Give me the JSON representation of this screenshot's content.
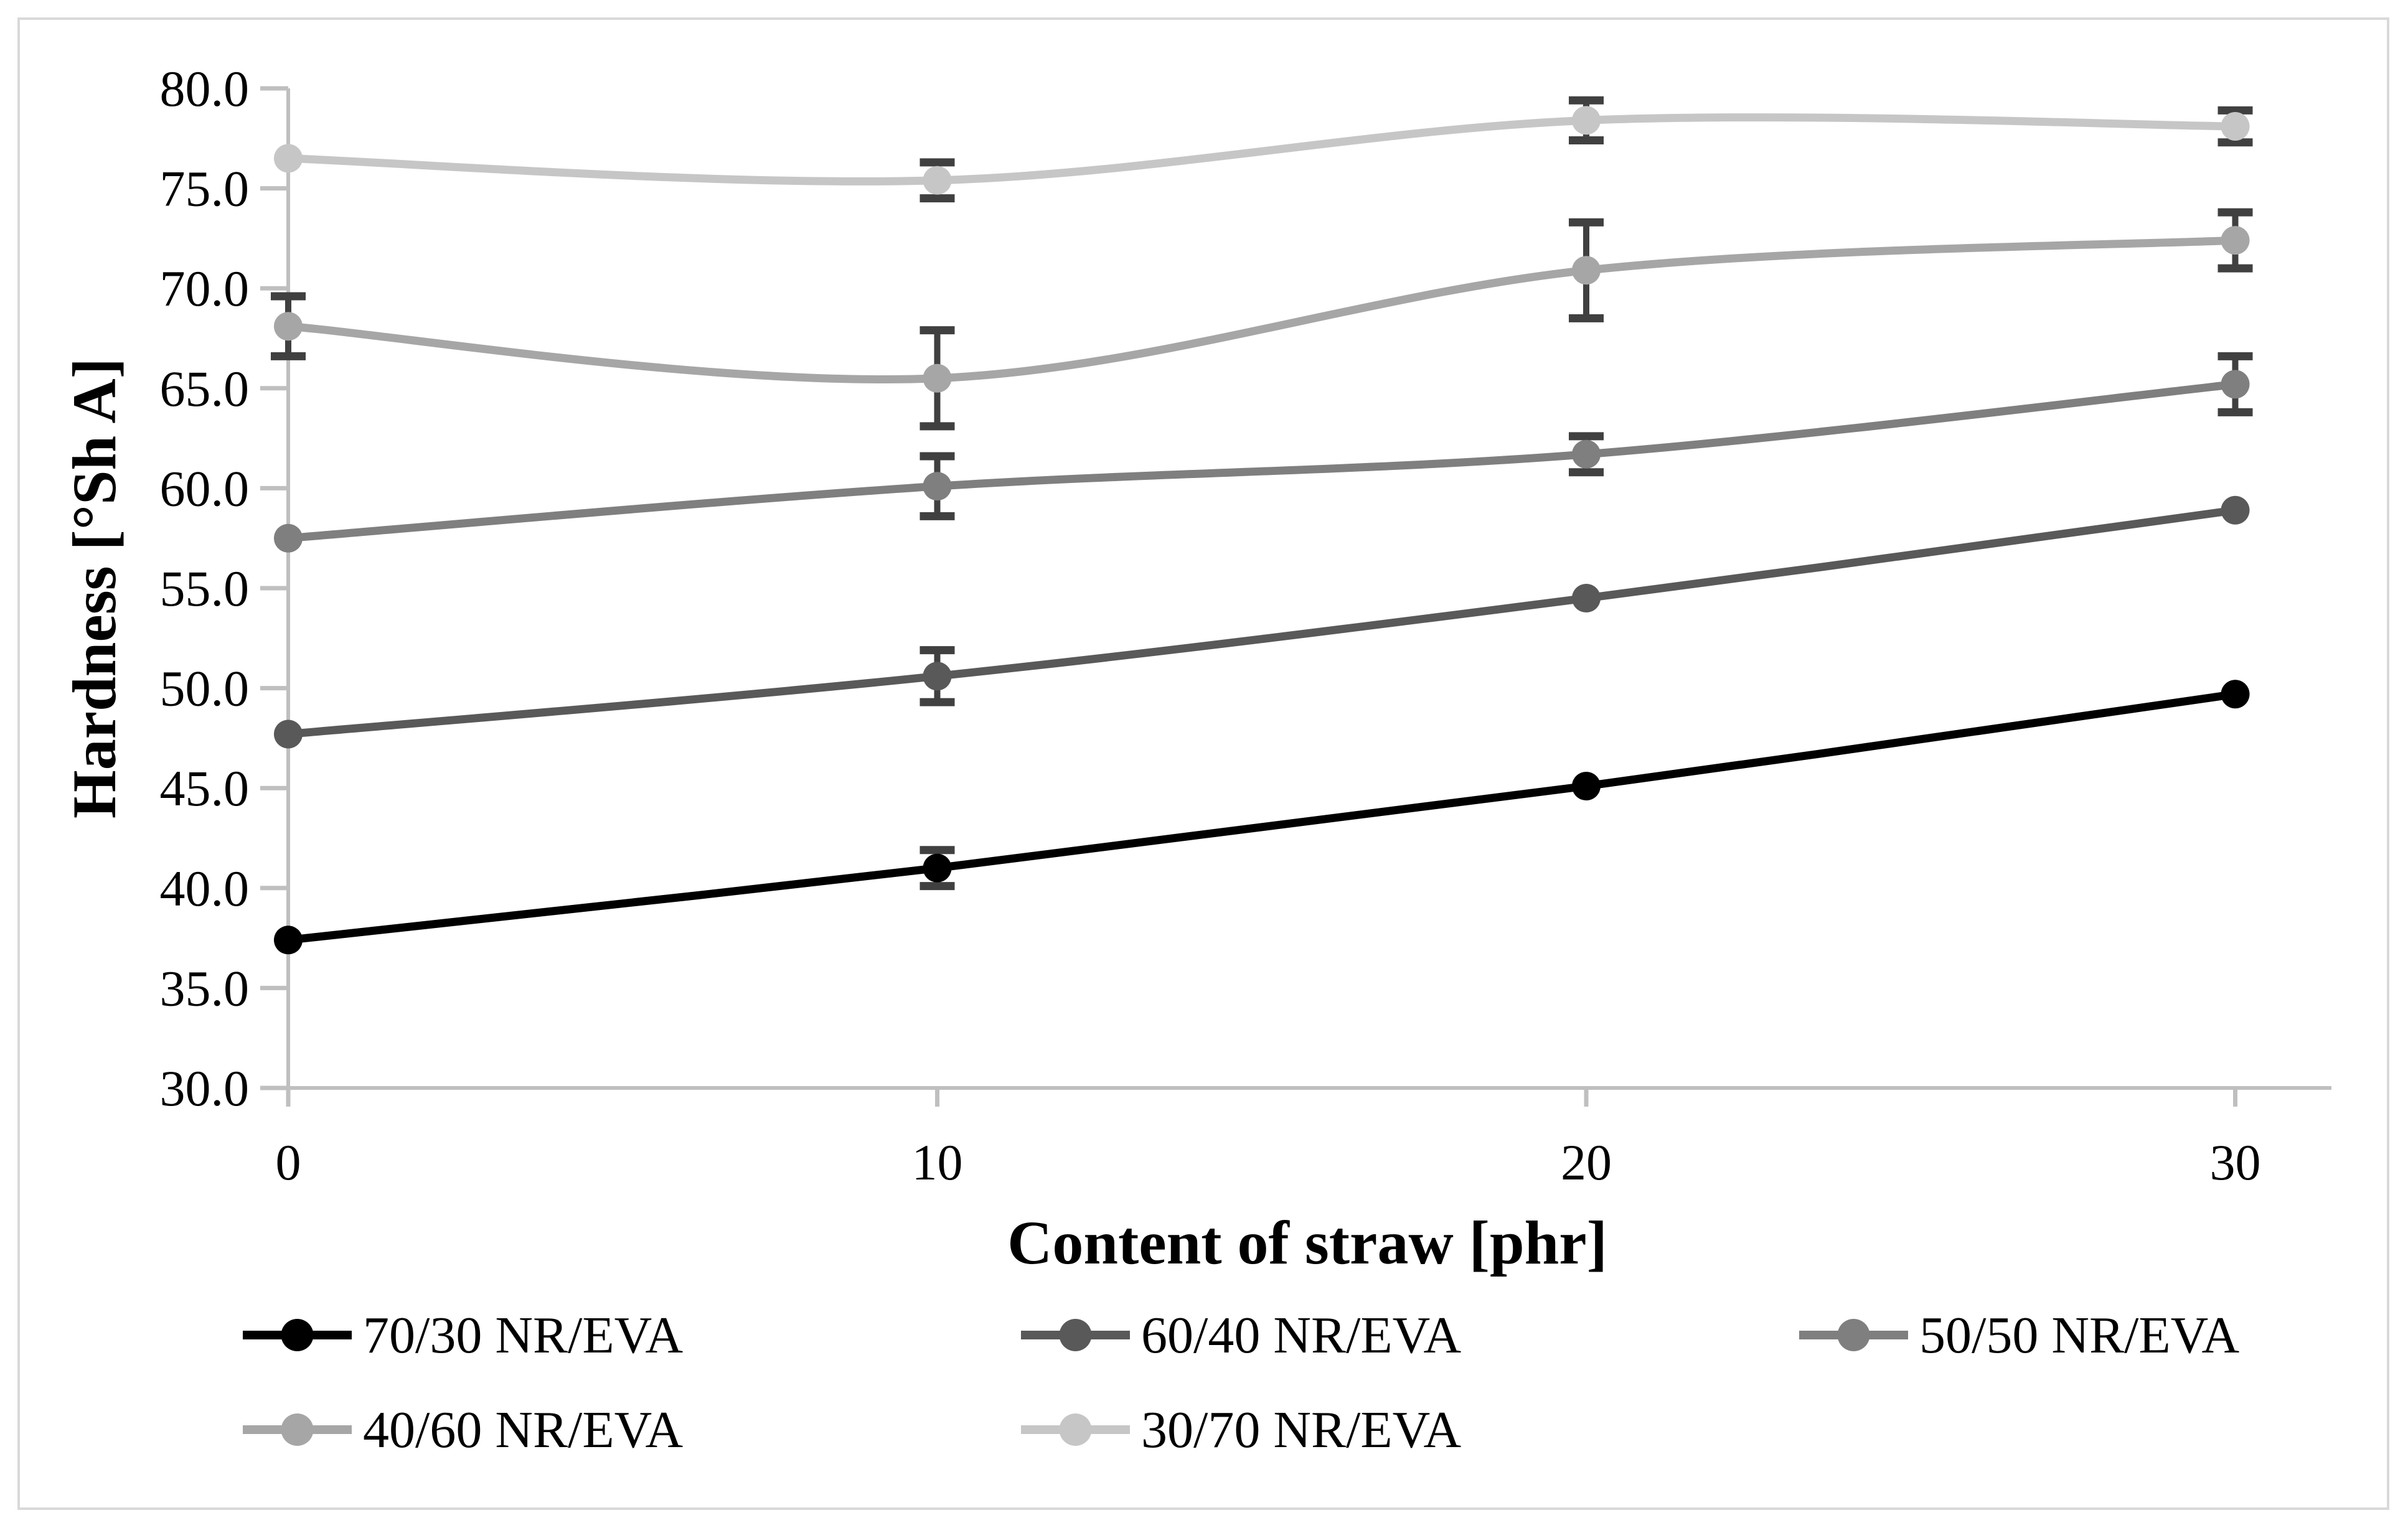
{
  "figure": {
    "background_color": "#ffffff",
    "border_color": "#d9d9d9"
  },
  "chart_data": {
    "type": "line",
    "smooth": true,
    "grid": false,
    "x": [
      0,
      10,
      20,
      30
    ],
    "x_tick_labels": [
      "0",
      "10",
      "20",
      "30"
    ],
    "y_tick_labels": [
      "80.0",
      "75.0",
      "70.0",
      "65.0",
      "60.0",
      "55.0",
      "50.0",
      "45.0",
      "40.0",
      "35.0",
      "30.0"
    ],
    "xlabel": "Content of straw [phr]",
    "ylabel": "Hardness [°Sh A]",
    "xlim": [
      0,
      30
    ],
    "ylim": [
      30,
      80
    ],
    "ytick_step": 5,
    "axis_color": "#bfbfbf",
    "error_bar_color": "#404040",
    "series": [
      {
        "name": "70/30 NR/EVA",
        "color": "#000000",
        "values": [
          37.4,
          41.0,
          45.1,
          49.7
        ],
        "errors": [
          0,
          0.9,
          0,
          0
        ]
      },
      {
        "name": "60/40 NR/EVA",
        "color": "#595959",
        "values": [
          47.7,
          50.6,
          54.5,
          58.9
        ],
        "errors": [
          0,
          1.3,
          0,
          0
        ]
      },
      {
        "name": "50/50 NR/EVA",
        "color": "#7f7f7f",
        "values": [
          57.5,
          60.1,
          61.7,
          65.2
        ],
        "errors": [
          0,
          1.5,
          0.9,
          1.4
        ]
      },
      {
        "name": "40/60 NR/EVA",
        "color": "#a6a6a6",
        "values": [
          68.1,
          65.5,
          70.9,
          72.4
        ],
        "errors": [
          1.5,
          2.4,
          2.4,
          1.4
        ]
      },
      {
        "name": "30/70 NR/EVA",
        "color": "#c6c6c6",
        "values": [
          76.5,
          75.4,
          78.4,
          78.1
        ],
        "errors": [
          0,
          0.9,
          1.0,
          0.8
        ]
      }
    ],
    "legend": {
      "position": "bottom-left",
      "rows": [
        [
          "70/30 NR/EVA",
          "60/40 NR/EVA",
          "50/50 NR/EVA"
        ],
        [
          "40/60 NR/EVA",
          "30/70 NR/EVA"
        ]
      ]
    }
  }
}
